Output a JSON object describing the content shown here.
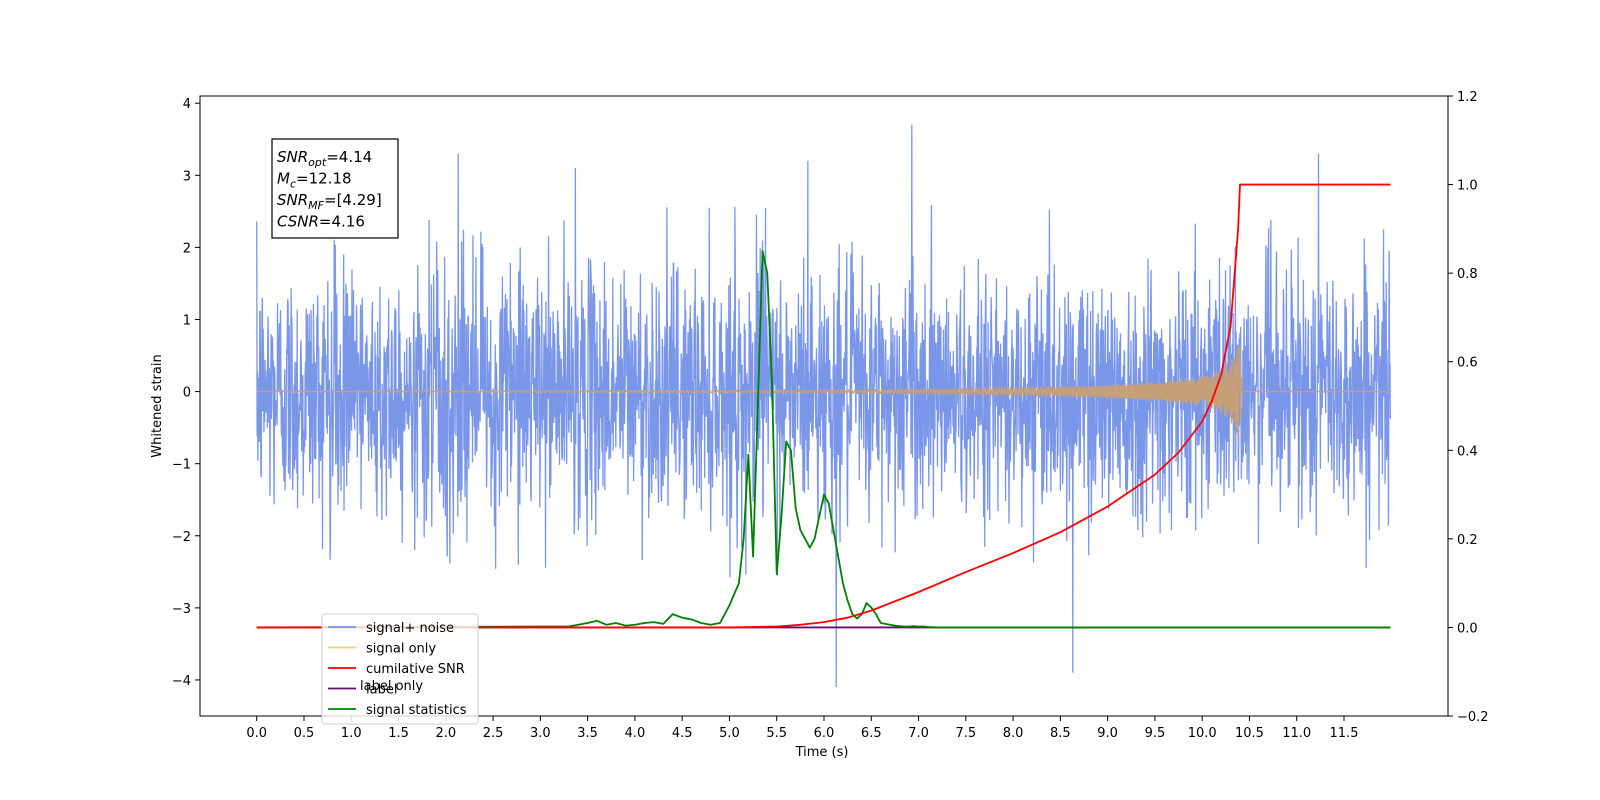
{
  "chart_data": {
    "type": "line",
    "xlabel": "Time (s)",
    "ylabel": "Whitened strain",
    "xlim": [
      -0.6,
      12.6
    ],
    "ylim": [
      -4.5,
      4.1
    ],
    "y2lim": [
      -0.2,
      1.2
    ],
    "x_ticks": [
      "0.0",
      "0.5",
      "1.0",
      "1.5",
      "2.0",
      "2.5",
      "3.0",
      "3.5",
      "4.0",
      "4.5",
      "5.0",
      "5.5",
      "6.0",
      "6.5",
      "7.0",
      "7.5",
      "8.0",
      "8.5",
      "9.0",
      "9.5",
      "10.0",
      "10.5",
      "11.0",
      "11.5"
    ],
    "y_ticks": [
      "4",
      "3",
      "2",
      "1",
      "0",
      "−1",
      "−2",
      "−3",
      "−4"
    ],
    "y2_ticks": [
      "1.2",
      "1.0",
      "0.8",
      "0.6",
      "0.4",
      "0.2",
      "0.0",
      "−0.2"
    ],
    "annotation": [
      {
        "var": "SNR",
        "sub": "opt",
        "rest": "=4.14"
      },
      {
        "var": "M",
        "sub": "c",
        "rest": "=12.18"
      },
      {
        "var": "SNR",
        "sub": "MF",
        "rest": "=[4.29]"
      },
      {
        "var": "CSNR",
        "sub": "",
        "rest": "=4.16"
      }
    ],
    "legend": {
      "placement": "lower-left",
      "entries": [
        {
          "label": "signal+ noise",
          "color": "#7a96e8"
        },
        {
          "label": "signal only",
          "color": "#ffc66a"
        },
        {
          "label": "cumilative SNR",
          "color": "#ff0000"
        },
        {
          "label": "label",
          "color": "#6a0d6a"
        },
        {
          "label": "signal statistics",
          "color": "#008000"
        }
      ],
      "hidden_text": [
        "label only",
        "n",
        "nal only",
        "iro"
      ]
    },
    "colors": {
      "noise": "#7a96e8",
      "signal": "#c8a078",
      "cumulative": "#ff0000",
      "label": "#6a0d6a",
      "statistics": "#008000"
    },
    "series": [
      {
        "name": "signal+ noise",
        "axis": "left",
        "description": "whitened strain time series, approx. x from 0.0 to 11.99 s, amplitude within about -2.5 to 2.5 with spikes to 3.7 and -4.1",
        "x_range": [
          0.0,
          11.99
        ],
        "spikes": [
          [
            6.93,
            3.7
          ],
          [
            6.13,
            -4.1
          ],
          [
            8.63,
            -3.9
          ],
          [
            11.23,
            3.3
          ],
          [
            2.13,
            3.3
          ],
          [
            5.83,
            3.2
          ],
          [
            3.37,
            3.1
          ]
        ]
      },
      {
        "name": "signal only",
        "axis": "left",
        "description": "chirp signal, near zero until ~8 s, growing to peak ~0.8 at 10.4 s, then zero",
        "envelope": {
          "x": [
            0.0,
            6.0,
            7.0,
            8.0,
            9.0,
            9.5,
            10.0,
            10.2,
            10.35,
            10.4,
            10.42,
            12.0
          ],
          "y": [
            0.0,
            0.02,
            0.03,
            0.05,
            0.09,
            0.13,
            0.2,
            0.3,
            0.5,
            0.8,
            0.0,
            0.0
          ]
        }
      },
      {
        "name": "cumilative SNR",
        "axis": "right",
        "x": [
          0.0,
          5.0,
          5.5,
          5.75,
          6.0,
          6.25,
          6.5,
          7.0,
          7.5,
          8.0,
          8.5,
          9.0,
          9.5,
          9.75,
          10.0,
          10.1,
          10.2,
          10.3,
          10.38,
          10.4,
          11.0,
          11.5,
          11.99
        ],
        "y": [
          0.0,
          0.0,
          0.002,
          0.006,
          0.012,
          0.022,
          0.038,
          0.08,
          0.125,
          0.168,
          0.215,
          0.273,
          0.345,
          0.395,
          0.465,
          0.51,
          0.57,
          0.68,
          0.9,
          1.0,
          1.0,
          1.0,
          1.0
        ]
      },
      {
        "name": "label",
        "axis": "right",
        "x": [
          0.0,
          11.99
        ],
        "y": [
          0.0,
          0.0
        ]
      },
      {
        "name": "signal statistics",
        "axis": "right",
        "x": [
          0.0,
          3.0,
          3.3,
          3.5,
          3.6,
          3.7,
          3.8,
          3.9,
          4.0,
          4.1,
          4.2,
          4.3,
          4.4,
          4.5,
          4.6,
          4.7,
          4.8,
          4.9,
          5.0,
          5.1,
          5.15,
          5.2,
          5.25,
          5.3,
          5.35,
          5.4,
          5.45,
          5.5,
          5.55,
          5.6,
          5.65,
          5.7,
          5.75,
          5.8,
          5.85,
          5.9,
          5.95,
          6.0,
          6.05,
          6.1,
          6.15,
          6.2,
          6.25,
          6.3,
          6.35,
          6.4,
          6.45,
          6.5,
          6.55,
          6.6,
          6.7,
          6.75,
          6.8,
          6.85,
          6.9,
          6.95,
          7.0,
          7.05,
          7.1,
          7.2,
          7.3,
          7.5,
          7.8,
          8.0,
          8.3,
          9.0,
          10.0,
          11.0,
          11.99
        ],
        "y": [
          0.0,
          0.002,
          0.002,
          0.01,
          0.015,
          0.006,
          0.01,
          0.004,
          0.006,
          0.01,
          0.012,
          0.008,
          0.03,
          0.022,
          0.018,
          0.01,
          0.006,
          0.01,
          0.05,
          0.1,
          0.2,
          0.39,
          0.16,
          0.5,
          0.85,
          0.8,
          0.55,
          0.12,
          0.25,
          0.42,
          0.4,
          0.27,
          0.22,
          0.2,
          0.18,
          0.2,
          0.25,
          0.3,
          0.28,
          0.22,
          0.16,
          0.1,
          0.06,
          0.03,
          0.02,
          0.03,
          0.055,
          0.045,
          0.03,
          0.01,
          0.006,
          0.004,
          0.003,
          0.002,
          0.002,
          0.003,
          0.002,
          0.002,
          0.001,
          0.0,
          0.0,
          0.0,
          0.0,
          0.0,
          0.0,
          0.0,
          0.0,
          0.0,
          0.0
        ]
      }
    ]
  }
}
